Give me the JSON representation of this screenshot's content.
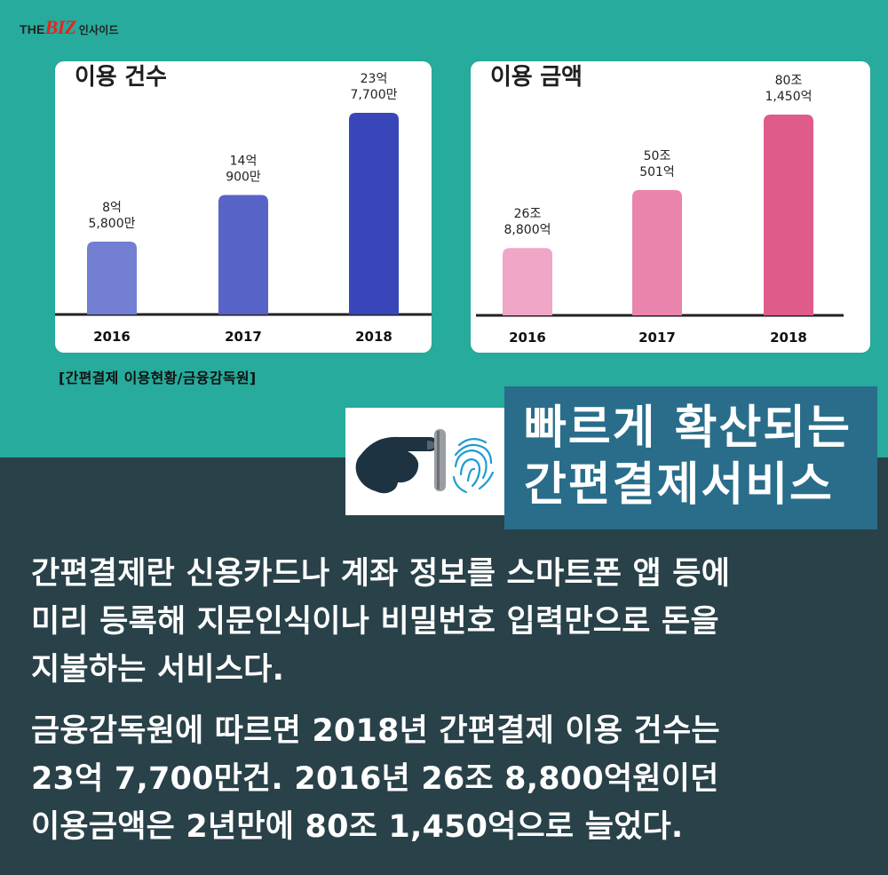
{
  "brand": {
    "prefix": "THE",
    "main": "BIZ",
    "suffix": "인사이드"
  },
  "chart_data": [
    {
      "type": "bar",
      "title": "이용 건수",
      "categories": [
        "2016",
        "2017",
        "2018"
      ],
      "values": [
        8.58,
        14.09,
        23.77
      ],
      "data_labels": [
        "8억\n5,800만",
        "14억\n900만",
        "23억\n7,700만"
      ],
      "colors": [
        "#727fd3",
        "#5863c8",
        "#3846b9"
      ]
    },
    {
      "type": "bar",
      "title": "이용 금액",
      "categories": [
        "2016",
        "2017",
        "2018"
      ],
      "values": [
        26.88,
        50.0501,
        80.145
      ],
      "data_labels": [
        "26조\n8,800억",
        "50조\n501억",
        "80조\n1,450억"
      ],
      "colors": [
        "#efa6c7",
        "#ea84ac",
        "#de5b8c"
      ]
    }
  ],
  "source_note": "[간편결제 이용현황/금융감독원]",
  "banner": {
    "line1": "빠르게 확산되는",
    "line2": "간편결제서비스",
    "icon_name": "pointing-hand-fingerprint-icon"
  },
  "body": {
    "paragraph1": "간편결제란 신용카드나 계좌 정보를 스마트폰 앱 등에\n미리 등록해 지문인식이나 비밀번호 입력만으로 돈을\n지불하는 서비스다.",
    "paragraph2": "금융감독원에 따르면 2018년 간편결제 이용 건수는\n23억 7,700만건. 2016년 26조 8,800억원이던\n이용금액은 2년만에 80조 1,450억으로 늘었다."
  },
  "colors": {
    "top_background": "#26ab9c",
    "bottom_background": "#294148",
    "banner_background": "#296d8b"
  }
}
